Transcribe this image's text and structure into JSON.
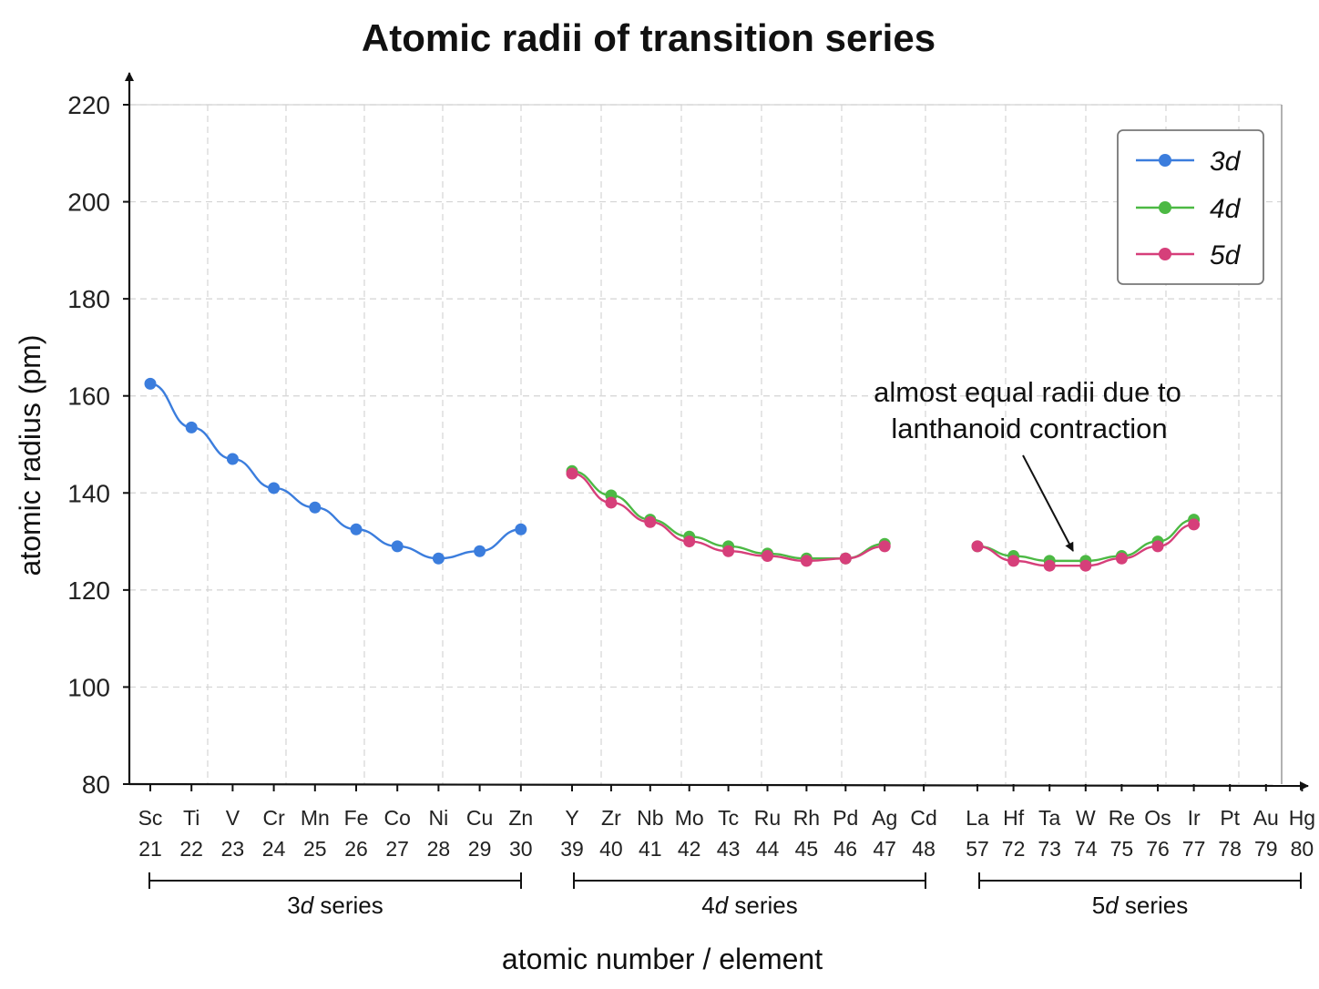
{
  "chart_data": {
    "type": "line",
    "title": "Atomic radii of transition series",
    "xlabel": "atomic number / element",
    "ylabel": "atomic radius (pm)",
    "ylim": [
      80,
      220
    ],
    "yticks": [
      80,
      100,
      120,
      140,
      160,
      180,
      200,
      220
    ],
    "grid": true,
    "legend_position": "top-right",
    "categories": [
      {
        "symbol": "Sc",
        "z": "21"
      },
      {
        "symbol": "Ti",
        "z": "22"
      },
      {
        "symbol": "V",
        "z": "23"
      },
      {
        "symbol": "Cr",
        "z": "24"
      },
      {
        "symbol": "Mn",
        "z": "25"
      },
      {
        "symbol": "Fe",
        "z": "26"
      },
      {
        "symbol": "Co",
        "z": "27"
      },
      {
        "symbol": "Ni",
        "z": "28"
      },
      {
        "symbol": "Cu",
        "z": "29"
      },
      {
        "symbol": "Zn",
        "z": "30"
      },
      {
        "symbol": "Y",
        "z": "39"
      },
      {
        "symbol": "Zr",
        "z": "40"
      },
      {
        "symbol": "Nb",
        "z": "41"
      },
      {
        "symbol": "Mo",
        "z": "42"
      },
      {
        "symbol": "Tc",
        "z": "43"
      },
      {
        "symbol": "Ru",
        "z": "44"
      },
      {
        "symbol": "Rh",
        "z": "45"
      },
      {
        "symbol": "Pd",
        "z": "46"
      },
      {
        "symbol": "Ag",
        "z": "47"
      },
      {
        "symbol": "Cd",
        "z": "48"
      },
      {
        "symbol": "La",
        "z": "57"
      },
      {
        "symbol": "Hf",
        "z": "72"
      },
      {
        "symbol": "Ta",
        "z": "73"
      },
      {
        "symbol": "W",
        "z": "74"
      },
      {
        "symbol": "Re",
        "z": "75"
      },
      {
        "symbol": "Os",
        "z": "76"
      },
      {
        "symbol": "Ir",
        "z": "77"
      },
      {
        "symbol": "Pt",
        "z": "78"
      },
      {
        "symbol": "Au",
        "z": "79"
      },
      {
        "symbol": "Hg",
        "z": "80"
      }
    ],
    "series": [
      {
        "name": "3d",
        "color": "#3b7ddd",
        "points": [
          {
            "element": "Sc",
            "value": 162.5
          },
          {
            "element": "Ti",
            "value": 153.5
          },
          {
            "element": "V",
            "value": 147
          },
          {
            "element": "Cr",
            "value": 141
          },
          {
            "element": "Mn",
            "value": 137
          },
          {
            "element": "Fe",
            "value": 132.5
          },
          {
            "element": "Co",
            "value": 129
          },
          {
            "element": "Ni",
            "value": 126.5
          },
          {
            "element": "Cu",
            "value": 128
          },
          {
            "element": "Zn",
            "value": 132.5
          }
        ]
      },
      {
        "name": "4d",
        "color": "#4cb944",
        "points": [
          {
            "element": "Y",
            "value": 144.5
          },
          {
            "element": "Zr",
            "value": 139.5
          },
          {
            "element": "Nb",
            "value": 134.5
          },
          {
            "element": "Mo",
            "value": 131
          },
          {
            "element": "Tc",
            "value": 129
          },
          {
            "element": "Ru",
            "value": 127.5
          },
          {
            "element": "Rh",
            "value": 126.5
          },
          {
            "element": "Pd",
            "value": 126.5
          },
          {
            "element": "Ag",
            "value": 129.5
          },
          {
            "element": "La",
            "value": 129
          },
          {
            "element": "Hf",
            "value": 127
          },
          {
            "element": "Ta",
            "value": 126
          },
          {
            "element": "W",
            "value": 126
          },
          {
            "element": "Re",
            "value": 127
          },
          {
            "element": "Os",
            "value": 130
          },
          {
            "element": "Ir",
            "value": 134.5
          }
        ]
      },
      {
        "name": "5d",
        "color": "#d63f7a",
        "points": [
          {
            "element": "Y",
            "value": 144
          },
          {
            "element": "Zr",
            "value": 138
          },
          {
            "element": "Nb",
            "value": 134
          },
          {
            "element": "Mo",
            "value": 130
          },
          {
            "element": "Tc",
            "value": 128
          },
          {
            "element": "Ru",
            "value": 127
          },
          {
            "element": "Rh",
            "value": 126
          },
          {
            "element": "Pd",
            "value": 126.5
          },
          {
            "element": "Ag",
            "value": 129
          },
          {
            "element": "La",
            "value": 129
          },
          {
            "element": "Hf",
            "value": 126
          },
          {
            "element": "Ta",
            "value": 125
          },
          {
            "element": "W",
            "value": 125
          },
          {
            "element": "Re",
            "value": 126.5
          },
          {
            "element": "Os",
            "value": 129
          },
          {
            "element": "Ir",
            "value": 133.5
          }
        ]
      }
    ],
    "brackets": [
      {
        "label_prefix": "3",
        "label_italic": "d",
        "label_suffix": " series"
      },
      {
        "label_prefix": "4",
        "label_italic": "d",
        "label_suffix": " series"
      },
      {
        "label_prefix": "5",
        "label_italic": "d",
        "label_suffix": " series"
      }
    ],
    "annotation": {
      "lines": [
        "almost equal radii due to",
        "lanthanoid contraction"
      ],
      "points_to": "W"
    }
  }
}
